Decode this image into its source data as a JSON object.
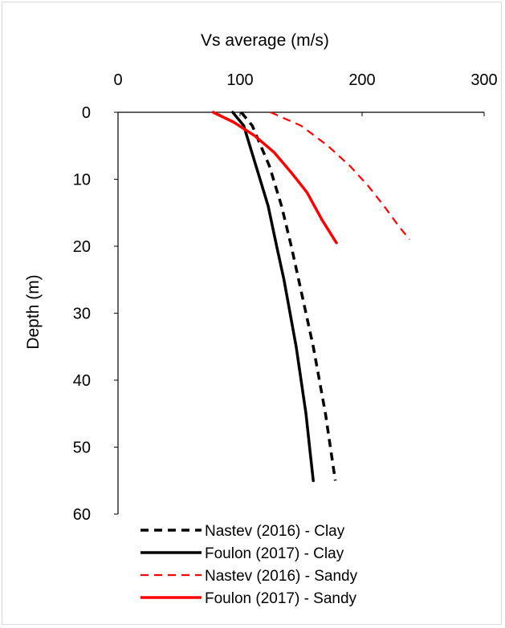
{
  "chart_data": {
    "type": "line",
    "xlabel": "Vs average (m/s)",
    "ylabel": "Depth (m)",
    "xlim": [
      0,
      300
    ],
    "ylim": [
      0,
      60
    ],
    "x_axis_position": "top",
    "y_axis_inverted": true,
    "xticks": [
      0,
      100,
      200,
      300
    ],
    "yticks": [
      0,
      10,
      20,
      30,
      40,
      50,
      60
    ],
    "grid": false,
    "legend_position": "bottom-left",
    "series": [
      {
        "name": "Nastev (2016) - Clay",
        "color": "#000000",
        "dash": "dashed",
        "x": [
          101,
          110,
          117,
          124,
          129,
          134,
          142,
          148,
          154,
          160,
          165,
          170,
          174,
          178
        ],
        "y": [
          0,
          2,
          5,
          8,
          11,
          14,
          20,
          25,
          30,
          35,
          40,
          45,
          50,
          55
        ]
      },
      {
        "name": "Foulon (2017) - Clay",
        "color": "#000000",
        "dash": "solid",
        "x": [
          94,
          103,
          108,
          113,
          118,
          123,
          130,
          136,
          141,
          146,
          150,
          154,
          157,
          160
        ],
        "y": [
          0,
          2,
          5,
          8,
          11,
          14,
          20,
          25,
          30,
          35,
          40,
          45,
          50,
          55
        ]
      },
      {
        "name": "Nastev (2016) - Sandy",
        "color": "#ff0000",
        "dash": "dashed",
        "x": [
          125,
          150,
          172,
          190,
          205,
          218,
          230,
          239
        ],
        "y": [
          0,
          2,
          5,
          8,
          11,
          14,
          17,
          19
        ]
      },
      {
        "name": "Foulon (2017) - Sandy",
        "color": "#ff0000",
        "dash": "solid",
        "x": [
          78,
          95,
          112,
          128,
          142,
          155,
          167,
          179
        ],
        "y": [
          0,
          1.5,
          3.5,
          6,
          9,
          12,
          16,
          19.5
        ]
      }
    ]
  }
}
